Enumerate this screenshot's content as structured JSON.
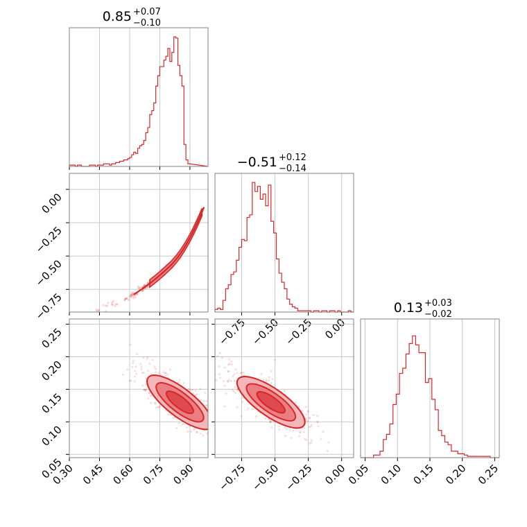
{
  "colors": {
    "accent": "#d62728",
    "fill_light": "#f4b6b8",
    "fill_mid": "#ea7e82",
    "fill_dark": "#de4a50",
    "grid": "#c8c8c8",
    "frame": "#808080"
  },
  "chart_data": [
    {
      "type": "histogram",
      "panel": "diag-0",
      "title": {
        "main": "0.85",
        "plus": "+0.07",
        "minus": "−0.10"
      },
      "xlim": [
        0.3,
        0.99
      ],
      "ylim": [
        0,
        1.07
      ],
      "grid": true,
      "bins": {
        "start": 0.3,
        "width": 0.01,
        "values": [
          0.01,
          0.01,
          0.01,
          0,
          0.01,
          0.01,
          0,
          0,
          0,
          0,
          0.01,
          0.01,
          0.01,
          0,
          0.01,
          0.01,
          0.01,
          0.02,
          0.02,
          0.02,
          0.01,
          0.02,
          0.02,
          0.03,
          0.03,
          0.04,
          0.04,
          0.05,
          0.05,
          0.06,
          0.07,
          0.09,
          0.11,
          0.1,
          0.14,
          0.16,
          0.17,
          0.2,
          0.26,
          0.3,
          0.4,
          0.43,
          0.49,
          0.62,
          0.7,
          0.77,
          0.77,
          0.82,
          0.85,
          0.91,
          0.81,
          0.88,
          1.0,
          0.99,
          0.78,
          0.7,
          0.62,
          0.17,
          0.05,
          0.02
        ]
      }
    },
    {
      "type": "histogram",
      "panel": "diag-1",
      "title": {
        "main": "−0.51",
        "plus": "+0.12",
        "minus": "−0.14"
      },
      "xlim": [
        -0.95,
        0.09
      ],
      "ylim": [
        0,
        1.07
      ],
      "grid": true,
      "xticks": [
        "−0.75",
        "−0.50",
        "−0.25",
        "0.00"
      ],
      "bins": {
        "start": -0.95,
        "width": 0.02,
        "values": [
          0.02,
          0.03,
          0.02,
          0.09,
          0.18,
          0.21,
          0.29,
          0.31,
          0.4,
          0.5,
          0.56,
          0.55,
          0.73,
          0.75,
          1.0,
          0.93,
          0.97,
          0.87,
          0.91,
          0.82,
          0.98,
          0.7,
          0.61,
          0.41,
          0.3,
          0.23,
          0.18,
          0.1,
          0.06,
          0.04,
          0.03,
          0.01,
          0.01,
          0.01,
          0.01,
          0.01,
          0.0,
          0.01,
          0.01,
          0.0,
          0.01,
          0.01,
          0.0,
          0.01,
          0.01,
          0.0,
          0.01,
          0.0,
          0.0,
          0.0,
          0.01,
          0.0
        ]
      }
    },
    {
      "type": "histogram",
      "panel": "diag-2",
      "title": {
        "main": "0.13",
        "plus": "+0.03",
        "minus": "−0.02"
      },
      "xlim": [
        0.043,
        0.257
      ],
      "ylim": [
        0,
        1.07
      ],
      "grid": true,
      "xticks": [
        "0.05",
        "0.10",
        "0.15",
        "0.20",
        "0.25"
      ],
      "bins": {
        "start": 0.043,
        "width": 0.005,
        "values": [
          0,
          0,
          0,
          0,
          0.02,
          0.02,
          0.05,
          0.14,
          0.18,
          0.26,
          0.41,
          0.49,
          0.65,
          0.69,
          0.8,
          0.88,
          0.94,
          0.87,
          0.81,
          0.81,
          0.58,
          0.61,
          0.45,
          0.37,
          0.21,
          0.17,
          0.12,
          0.1,
          0.05,
          0.05,
          0.03,
          0.03,
          0.02,
          0.01,
          0.01,
          0.01,
          0.01,
          0.01,
          0.01,
          0.01,
          0.0,
          0.0,
          0.0
        ]
      }
    },
    {
      "type": "scatter_contour",
      "panel": "p10",
      "xlim": [
        0.3,
        0.99
      ],
      "ylim": [
        -0.92,
        0.12
      ],
      "grid": true,
      "yticks": [
        "0.00",
        "−0.25",
        "−0.50",
        "−0.75"
      ],
      "note_shape": "narrow banana ridge from (0.40,-0.90) to (0.98,-0.20)",
      "points": {
        "x_from": 0.42,
        "x_to": 0.975,
        "curve": "ridge"
      }
    },
    {
      "type": "scatter_contour",
      "panel": "p20",
      "xlim": [
        0.3,
        0.99
      ],
      "ylim": [
        0.045,
        0.258
      ],
      "grid": true,
      "xticks": [
        "0.30",
        "0.45",
        "0.60",
        "0.75",
        "0.90"
      ],
      "yticks": [
        "0.25",
        "0.20",
        "0.15",
        "0.10",
        "0.05"
      ]
    },
    {
      "type": "scatter_contour",
      "panel": "p21",
      "xlim": [
        -0.95,
        0.09
      ],
      "ylim": [
        0.045,
        0.258
      ],
      "grid": true,
      "xticks": [
        "−0.75",
        "−0.50",
        "−0.25",
        "0.00"
      ]
    }
  ]
}
